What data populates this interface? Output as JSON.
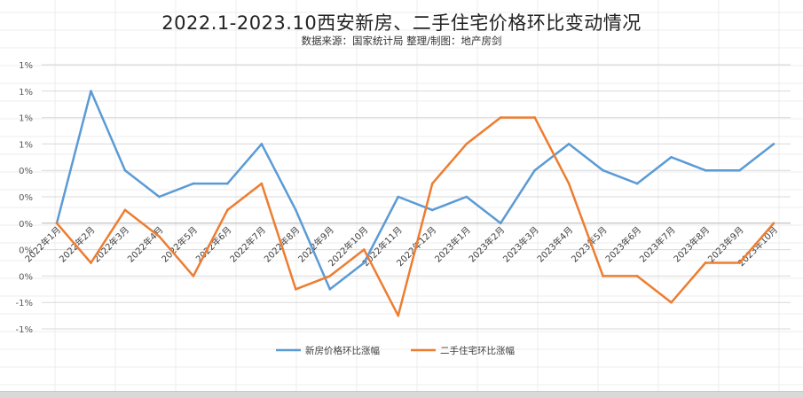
{
  "chart_data": {
    "type": "line",
    "title": "2022.1-2023.10西安新房、二手住宅价格环比变动情况",
    "subtitle": "数据来源：国家统计局    整理/制图：地产房剑",
    "categories": [
      "2022年1月",
      "2022年2月",
      "2022年3月",
      "2022年4月",
      "2022年5月",
      "2022年6月",
      "2022年7月",
      "2022年8月",
      "2022年9月",
      "2022年10月",
      "2022年11月",
      "2022年12月",
      "2023年1月",
      "2023年2月",
      "2023年3月",
      "2023年4月",
      "2023年5月",
      "2023年6月",
      "2023年7月",
      "2023年8月",
      "2023年9月",
      "2023年10月"
    ],
    "series": [
      {
        "name": "新房价格环比涨幅",
        "color": "#5b9bd5",
        "values": [
          0.0,
          1.0,
          0.4,
          0.2,
          0.3,
          0.3,
          0.6,
          0.1,
          -0.5,
          -0.3,
          0.2,
          0.1,
          0.2,
          0.0,
          0.4,
          0.6,
          0.4,
          0.3,
          0.5,
          0.4,
          0.4,
          0.6
        ]
      },
      {
        "name": "二手住宅环比涨幅",
        "color": "#ed7d31",
        "values": [
          0.0,
          -0.3,
          0.1,
          -0.1,
          -0.4,
          0.1,
          0.3,
          -0.5,
          -0.4,
          -0.2,
          -0.7,
          0.3,
          0.6,
          0.8,
          0.8,
          0.3,
          -0.4,
          -0.4,
          -0.6,
          -0.3,
          -0.3,
          0.0
        ]
      }
    ],
    "yticks": [
      -0.8,
      -0.6,
      -0.4,
      -0.2,
      0.0,
      0.2,
      0.4,
      0.6,
      0.8,
      1.0,
      1.2
    ],
    "ytick_labels": [
      "-1%",
      "-1%",
      "0%",
      "0%",
      "0%",
      "0%",
      "0%",
      "1%",
      "1%",
      "1%",
      "1%"
    ],
    "ylim": [
      -0.8,
      1.2
    ],
    "xlabel": "",
    "ylabel": "",
    "grid": true,
    "legend_position": "bottom"
  }
}
